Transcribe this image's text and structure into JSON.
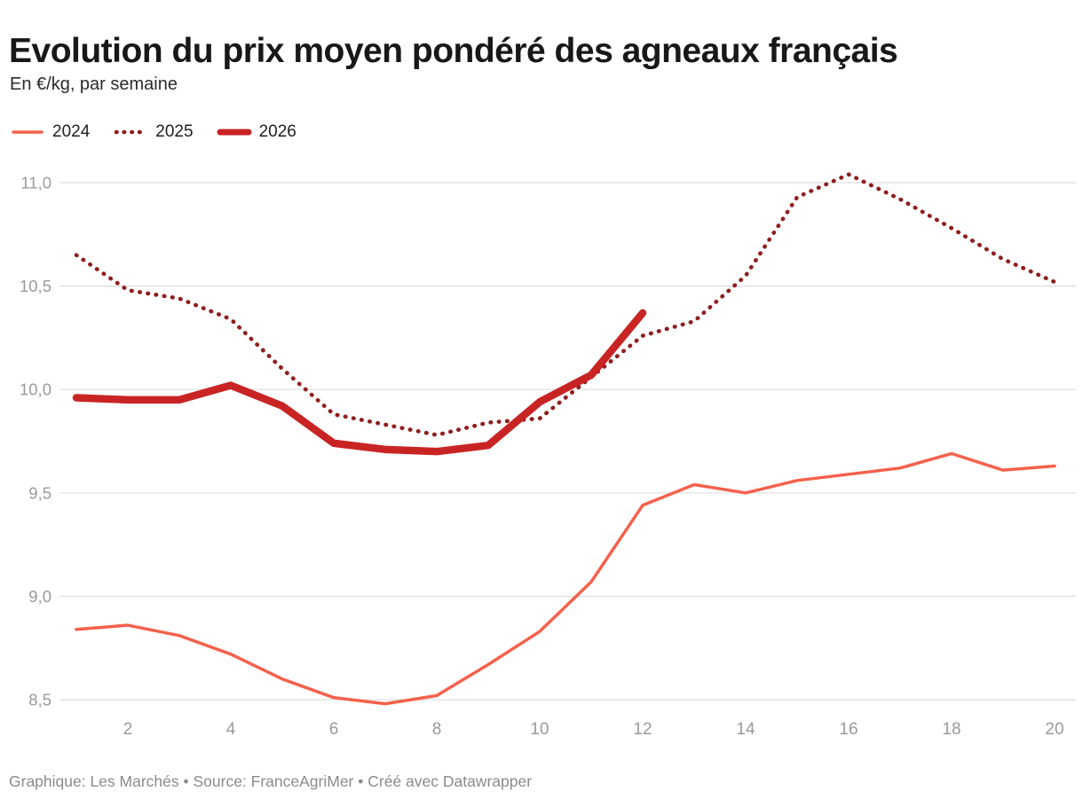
{
  "footer": {
    "attribution": "Graphique: Les Marchés • Source: FranceAgriMer • Créé avec Datawrapper"
  },
  "chart_data": {
    "type": "line",
    "title": "Evolution du prix moyen pondéré des agneaux français",
    "subtitle": "En €/kg, par semaine",
    "unit": "€/kg",
    "x_unit": "semaine",
    "x": [
      1,
      2,
      3,
      4,
      5,
      6,
      7,
      8,
      9,
      10,
      11,
      12,
      13,
      14,
      15,
      16,
      17,
      18,
      19,
      20
    ],
    "x_ticks": [
      2,
      4,
      6,
      8,
      10,
      12,
      14,
      16,
      18,
      20
    ],
    "y_ticks": [
      {
        "value": 11.0,
        "label": "11,0"
      },
      {
        "value": 10.5,
        "label": "10,5"
      },
      {
        "value": 10.0,
        "label": "10,0"
      },
      {
        "value": 9.5,
        "label": "9,5"
      },
      {
        "value": 9.0,
        "label": "9,0"
      },
      {
        "value": 8.5,
        "label": "8,5"
      }
    ],
    "ylim": [
      8.5,
      11.0
    ],
    "grid": "horizontal",
    "legend_position": "top",
    "series": [
      {
        "name": "2024",
        "color": "#f4614c",
        "line": "solid",
        "width": 3.5,
        "values": [
          8.84,
          8.86,
          8.81,
          8.72,
          8.6,
          8.51,
          8.48,
          8.52,
          8.67,
          8.83,
          9.07,
          9.44,
          9.54,
          9.5,
          9.56,
          9.59,
          9.62,
          9.69,
          9.61,
          9.63
        ]
      },
      {
        "name": "2025",
        "color": "#8f1d1d",
        "line": "dotted",
        "width": 4.6,
        "values": [
          10.65,
          10.48,
          10.44,
          10.34,
          10.1,
          9.88,
          9.83,
          9.78,
          9.84,
          9.86,
          10.06,
          10.26,
          10.33,
          10.55,
          10.93,
          11.04,
          10.92,
          10.78,
          10.63,
          10.52
        ]
      },
      {
        "name": "2026",
        "color": "#c92424",
        "line": "solid",
        "width": 8.5,
        "values": [
          9.96,
          9.95,
          9.95,
          10.02,
          9.92,
          9.74,
          9.71,
          9.7,
          9.73,
          9.94,
          10.07,
          10.37
        ]
      }
    ]
  },
  "axis_style": {
    "tick_color": "#9a9a9a",
    "grid_color": "#dddddd"
  }
}
